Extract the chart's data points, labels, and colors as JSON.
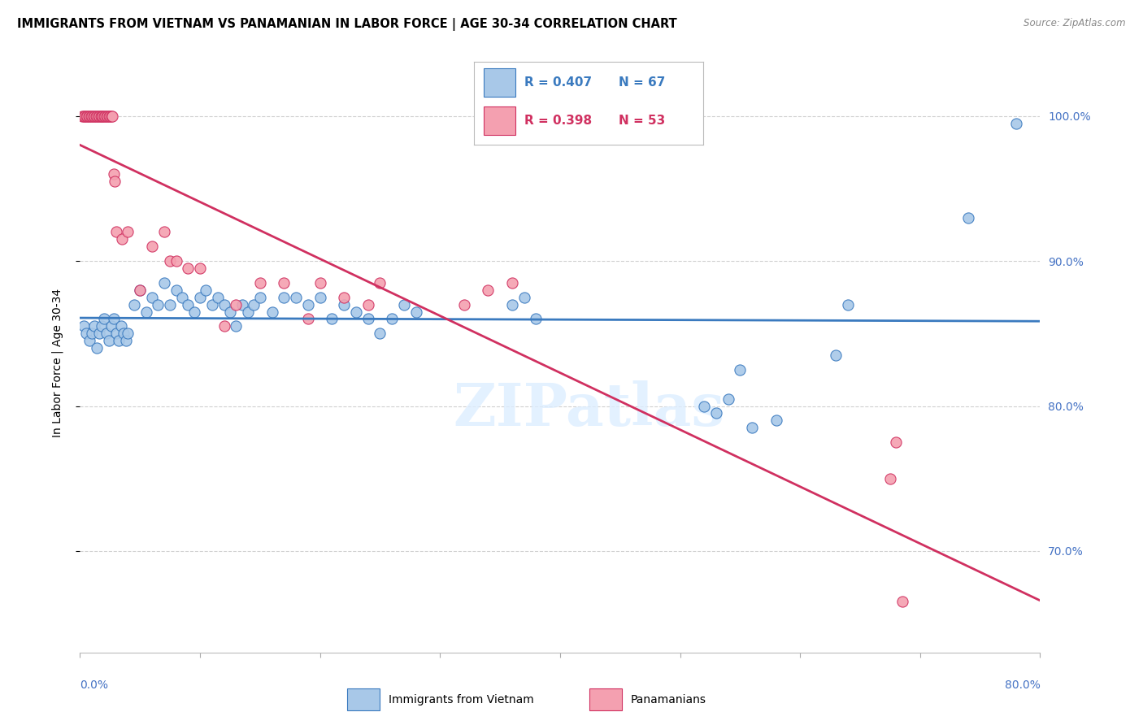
{
  "title": "IMMIGRANTS FROM VIETNAM VS PANAMANIAN IN LABOR FORCE | AGE 30-34 CORRELATION CHART",
  "source": "Source: ZipAtlas.com",
  "ylabel": "In Labor Force | Age 30-34",
  "legend1_label": "Immigrants from Vietnam",
  "legend2_label": "Panamanians",
  "R1": 0.407,
  "N1": 67,
  "R2": 0.398,
  "N2": 53,
  "blue_color": "#a8c8e8",
  "pink_color": "#f4a0b0",
  "blue_line_color": "#3a7abf",
  "pink_line_color": "#d03060",
  "right_axis_color": "#4472c4",
  "watermark": "ZIPatlas",
  "xmin": 0.0,
  "xmax": 80.0,
  "ymin": 63.0,
  "ymax": 103.0,
  "yticks": [
    70.0,
    80.0,
    90.0,
    100.0
  ],
  "xticks": [
    0,
    10,
    20,
    30,
    40,
    50,
    60,
    70,
    80
  ],
  "blue_scatter_x": [
    0.3,
    0.5,
    0.8,
    1.0,
    1.2,
    1.4,
    1.6,
    1.8,
    2.0,
    2.2,
    2.4,
    2.6,
    2.8,
    3.0,
    3.2,
    3.4,
    3.6,
    3.8,
    4.0,
    4.5,
    5.0,
    5.5,
    6.0,
    6.5,
    7.0,
    7.5,
    8.0,
    8.5,
    9.0,
    9.5,
    10.0,
    10.5,
    11.0,
    11.5,
    12.0,
    12.5,
    13.0,
    13.5,
    14.0,
    14.5,
    15.0,
    16.0,
    17.0,
    18.0,
    19.0,
    20.0,
    21.0,
    22.0,
    23.0,
    24.0,
    25.0,
    26.0,
    27.0,
    28.0,
    36.0,
    37.0,
    38.0,
    52.0,
    53.0,
    54.0,
    55.0,
    56.0,
    58.0,
    63.0,
    64.0,
    74.0,
    78.0
  ],
  "blue_scatter_y": [
    85.5,
    85.0,
    84.5,
    85.0,
    85.5,
    84.0,
    85.0,
    85.5,
    86.0,
    85.0,
    84.5,
    85.5,
    86.0,
    85.0,
    84.5,
    85.5,
    85.0,
    84.5,
    85.0,
    87.0,
    88.0,
    86.5,
    87.5,
    87.0,
    88.5,
    87.0,
    88.0,
    87.5,
    87.0,
    86.5,
    87.5,
    88.0,
    87.0,
    87.5,
    87.0,
    86.5,
    85.5,
    87.0,
    86.5,
    87.0,
    87.5,
    86.5,
    87.5,
    87.5,
    87.0,
    87.5,
    86.0,
    87.0,
    86.5,
    86.0,
    85.0,
    86.0,
    87.0,
    86.5,
    87.0,
    87.5,
    86.0,
    80.0,
    79.5,
    80.5,
    82.5,
    78.5,
    79.0,
    83.5,
    87.0,
    93.0,
    99.5
  ],
  "pink_scatter_x": [
    0.2,
    0.3,
    0.4,
    0.5,
    0.6,
    0.7,
    0.8,
    0.9,
    1.0,
    1.1,
    1.2,
    1.3,
    1.4,
    1.5,
    1.6,
    1.7,
    1.8,
    1.9,
    2.0,
    2.1,
    2.2,
    2.3,
    2.4,
    2.5,
    2.6,
    2.7,
    2.8,
    2.9,
    3.0,
    3.5,
    4.0,
    5.0,
    6.0,
    7.0,
    7.5,
    8.0,
    9.0,
    10.0,
    12.0,
    13.0,
    15.0,
    17.0,
    19.0,
    20.0,
    22.0,
    24.0,
    25.0,
    32.0,
    34.0,
    36.0,
    67.5,
    68.0,
    68.5
  ],
  "pink_scatter_y": [
    100.0,
    100.0,
    100.0,
    100.0,
    100.0,
    100.0,
    100.0,
    100.0,
    100.0,
    100.0,
    100.0,
    100.0,
    100.0,
    100.0,
    100.0,
    100.0,
    100.0,
    100.0,
    100.0,
    100.0,
    100.0,
    100.0,
    100.0,
    100.0,
    100.0,
    100.0,
    96.0,
    95.5,
    92.0,
    91.5,
    92.0,
    88.0,
    91.0,
    92.0,
    90.0,
    90.0,
    89.5,
    89.5,
    85.5,
    87.0,
    88.5,
    88.5,
    86.0,
    88.5,
    87.5,
    87.0,
    88.5,
    87.0,
    88.0,
    88.5,
    75.0,
    77.5,
    66.5
  ],
  "grid_color": "#d0d0d0",
  "background_color": "#ffffff",
  "title_fontsize": 10.5,
  "axis_label_fontsize": 10,
  "tick_fontsize": 10,
  "watermark_fontsize": 52,
  "watermark_color": "#ddeeff",
  "watermark_alpha": 0.8
}
